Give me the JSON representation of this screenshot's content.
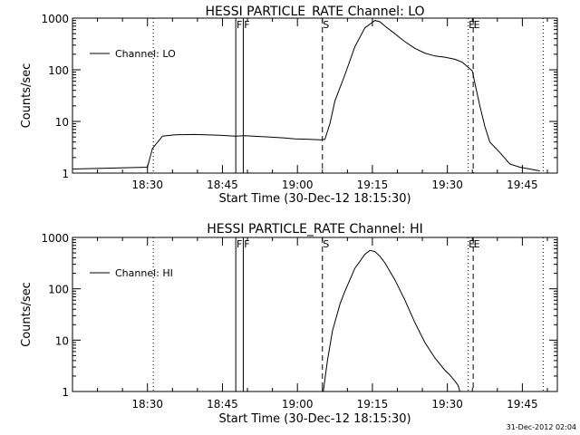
{
  "footer": {
    "timestamp": "31-Dec-2012 02:04"
  },
  "chart_data": [
    {
      "type": "line",
      "title": "HESSI PARTICLE_RATE Channel: LO",
      "xlabel": "Start Time (30-Dec-12 18:15:30)",
      "ylabel": "Counts/sec",
      "y_scale": "log",
      "ylim": [
        1,
        1000
      ],
      "xlim_minutes_since_start": [
        0,
        97
      ],
      "x_tick_labels": [
        "18:30",
        "18:45",
        "19:00",
        "19:15",
        "19:30",
        "19:45"
      ],
      "x_tick_minutes": [
        15,
        30,
        45,
        60,
        75,
        90
      ],
      "y_tick_labels": [
        "1",
        "10",
        "100",
        "1000"
      ],
      "legend": {
        "label": "Channel: LO",
        "position": "top-left"
      },
      "markers": [
        {
          "label": "",
          "time": "18:31:40",
          "style": "dotted"
        },
        {
          "label": "F",
          "time": "18:48:10",
          "style": "solid"
        },
        {
          "label": "F",
          "time": "18:49:40",
          "style": "solid"
        },
        {
          "label": "S",
          "time": "19:05:30",
          "style": "dashed"
        },
        {
          "label": "E",
          "time": "19:34:40",
          "style": "dotted"
        },
        {
          "label": "E",
          "time": "19:35:40",
          "style": "dashed"
        },
        {
          "label": "",
          "time": "19:49:40",
          "style": "dotted"
        }
      ],
      "series": [
        {
          "x": [
            "18:15:30",
            "18:30:30",
            "18:31:30",
            "18:33:30",
            "18:36:00",
            "18:40:00",
            "18:45:00",
            "18:48:00",
            "18:50:00",
            "18:55:00",
            "18:58:00",
            "19:00:00",
            "19:03:00",
            "19:05:00",
            "19:06:00",
            "19:07:00",
            "19:08:00",
            "19:10:00",
            "19:12:00",
            "19:14:00",
            "19:16:00",
            "19:17:00",
            "19:18:00",
            "19:20:00",
            "19:22:00",
            "19:24:00",
            "19:26:00",
            "19:28:00",
            "19:30:00",
            "19:32:00",
            "19:33:30",
            "19:34:30",
            "19:35:30",
            "19:36:00",
            "19:37:00",
            "19:38:00",
            "19:39:00",
            "19:41:00",
            "19:43:00",
            "19:45:00",
            "19:47:00",
            "19:49:00"
          ],
          "values": [
            1.2,
            1.3,
            3.0,
            5.2,
            5.5,
            5.6,
            5.4,
            5.2,
            5.3,
            5.0,
            4.8,
            4.6,
            4.5,
            4.4,
            4.5,
            9,
            25,
            80,
            280,
            650,
            900,
            850,
            700,
            500,
            350,
            260,
            210,
            185,
            175,
            160,
            140,
            115,
            95,
            55,
            20,
            8,
            4,
            2.5,
            1.5,
            1.3,
            1.2,
            1.1
          ]
        }
      ]
    },
    {
      "type": "line",
      "title": "HESSI PARTICLE_RATE Channel: HI",
      "xlabel": "Start Time (30-Dec-12 18:15:30)",
      "ylabel": "Counts/sec",
      "y_scale": "log",
      "ylim": [
        1,
        1000
      ],
      "xlim_minutes_since_start": [
        0,
        97
      ],
      "x_tick_labels": [
        "18:30",
        "18:45",
        "19:00",
        "19:15",
        "19:30",
        "19:45"
      ],
      "x_tick_minutes": [
        15,
        30,
        45,
        60,
        75,
        90
      ],
      "y_tick_labels": [
        "1",
        "10",
        "100",
        "1000"
      ],
      "legend": {
        "label": "Channel: HI",
        "position": "top-left"
      },
      "markers": [
        {
          "label": "",
          "time": "18:31:40",
          "style": "dotted"
        },
        {
          "label": "F",
          "time": "18:48:10",
          "style": "solid"
        },
        {
          "label": "F",
          "time": "18:49:40",
          "style": "solid"
        },
        {
          "label": "S",
          "time": "19:05:30",
          "style": "dashed"
        },
        {
          "label": "E",
          "time": "19:34:40",
          "style": "dotted"
        },
        {
          "label": "E",
          "time": "19:35:40",
          "style": "dashed"
        },
        {
          "label": "",
          "time": "19:49:40",
          "style": "dotted"
        }
      ],
      "series": [
        {
          "x": [
            "19:05:40",
            "19:06:30",
            "19:07:30",
            "19:09:00",
            "19:10:00",
            "19:12:00",
            "19:14:00",
            "19:15:00",
            "19:16:00",
            "19:17:00",
            "19:18:00",
            "19:20:00",
            "19:22:00",
            "19:24:00",
            "19:26:00",
            "19:28:00",
            "19:30:00",
            "19:31:00",
            "19:32:00",
            "19:32:40",
            "19:33:00"
          ],
          "values": [
            1,
            4,
            15,
            50,
            90,
            250,
            470,
            560,
            530,
            430,
            320,
            150,
            60,
            22,
            9,
            4.5,
            2.6,
            2.1,
            1.6,
            1.3,
            1
          ]
        }
      ]
    }
  ]
}
